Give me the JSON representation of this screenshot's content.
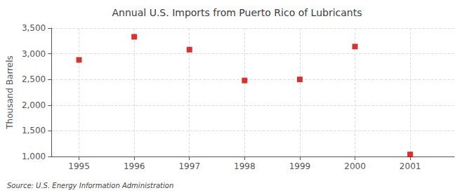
{
  "chart_data": {
    "type": "scatter",
    "title": "Annual U.S. Imports from Puerto Rico of Lubricants",
    "ylabel": "Thousand Barrels",
    "annotation": "Source: U.S. Energy Information Administration",
    "x": [
      1995,
      1996,
      1997,
      1998,
      1999,
      2000,
      2001
    ],
    "values": [
      2880,
      3330,
      3080,
      2480,
      2500,
      3140,
      1040
    ],
    "color": "#cc0000",
    "marker": "square",
    "xlim": [
      1994.5,
      2001.8
    ],
    "xticks": [
      1995,
      1996,
      1997,
      1998,
      1999,
      2000,
      2001
    ],
    "ylim": [
      1000,
      3500
    ],
    "yticks": [
      {
        "value": 1000,
        "label": "1,000"
      },
      {
        "value": 1500,
        "label": "1,500"
      },
      {
        "value": 2000,
        "label": "2,000"
      },
      {
        "value": 2500,
        "label": "2,500"
      },
      {
        "value": 3000,
        "label": "3,000"
      },
      {
        "value": 3500,
        "label": "3,500"
      }
    ],
    "grid": true
  }
}
